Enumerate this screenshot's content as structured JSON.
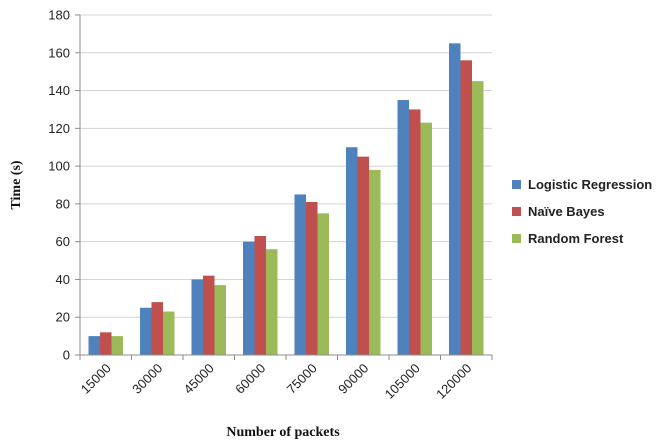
{
  "chart_data": {
    "type": "bar",
    "title": "",
    "xlabel": "Number of packets",
    "ylabel": "Time (s)",
    "ylim": [
      0,
      180
    ],
    "yticks": [
      0,
      20,
      40,
      60,
      80,
      100,
      120,
      140,
      160,
      180
    ],
    "grid": "horizontal",
    "legend_position": "right",
    "categories": [
      "15000",
      "30000",
      "45000",
      "60000",
      "75000",
      "90000",
      "105000",
      "120000"
    ],
    "series": [
      {
        "name": "Logistic Regression",
        "color": "#4f81bd",
        "values": [
          10,
          25,
          40,
          60,
          85,
          110,
          135,
          165
        ]
      },
      {
        "name": "Naïve Bayes",
        "color": "#c0504d",
        "values": [
          12,
          28,
          42,
          63,
          81,
          105,
          130,
          156
        ]
      },
      {
        "name": "Random Forest",
        "color": "#9bbb59",
        "values": [
          10,
          23,
          37,
          56,
          75,
          98,
          123,
          145
        ]
      }
    ]
  }
}
